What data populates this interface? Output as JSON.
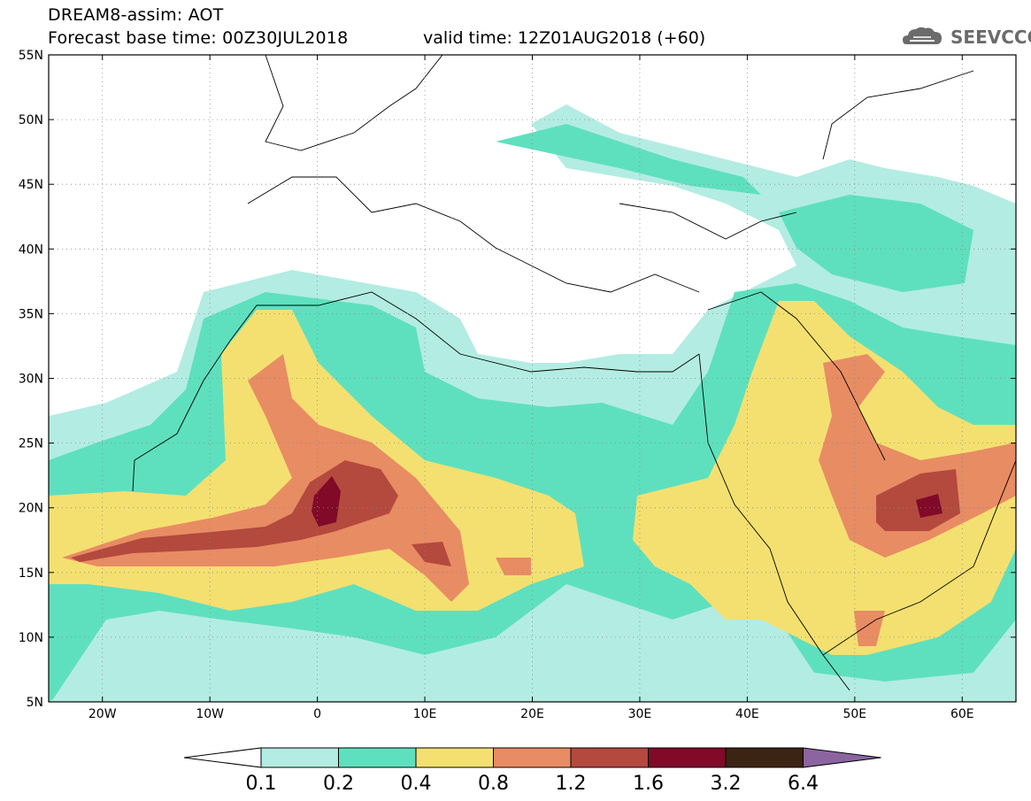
{
  "header": {
    "title_line1": "DREAM8-assim: AOT",
    "title_line2": "Forecast base time: 00Z30JUL2018",
    "valid_time": "valid time: 12Z01AUG2018 (+60)",
    "logo_text": "SEEVCCC"
  },
  "map": {
    "variable": "AOT",
    "lon_range": [
      -25,
      65
    ],
    "lat_range": [
      5,
      55
    ],
    "lon_ticks": [
      {
        "value": -20,
        "label": "20W"
      },
      {
        "value": -10,
        "label": "10W"
      },
      {
        "value": 0,
        "label": "0"
      },
      {
        "value": 10,
        "label": "10E"
      },
      {
        "value": 20,
        "label": "20E"
      },
      {
        "value": 30,
        "label": "30E"
      },
      {
        "value": 40,
        "label": "40E"
      },
      {
        "value": 50,
        "label": "50E"
      },
      {
        "value": 60,
        "label": "60E"
      }
    ],
    "lat_ticks": [
      {
        "value": 55,
        "label": "55N"
      },
      {
        "value": 50,
        "label": "50N"
      },
      {
        "value": 45,
        "label": "45N"
      },
      {
        "value": 40,
        "label": "40N"
      },
      {
        "value": 35,
        "label": "35N"
      },
      {
        "value": 30,
        "label": "30N"
      },
      {
        "value": 25,
        "label": "25N"
      },
      {
        "value": 20,
        "label": "20N"
      },
      {
        "value": 15,
        "label": "15N"
      },
      {
        "value": 10,
        "label": "10N"
      },
      {
        "value": 5,
        "label": "5N"
      }
    ],
    "grid": "dotted"
  },
  "colorbar": {
    "levels": [
      "0.1",
      "0.2",
      "0.4",
      "0.8",
      "1.2",
      "1.6",
      "3.2",
      "6.4"
    ],
    "colors": [
      "#ffffff",
      "#b3ece3",
      "#5ee0be",
      "#f4e070",
      "#e88c64",
      "#b4493e",
      "#800a28",
      "#3c2414",
      "#8c64a0"
    ]
  }
}
